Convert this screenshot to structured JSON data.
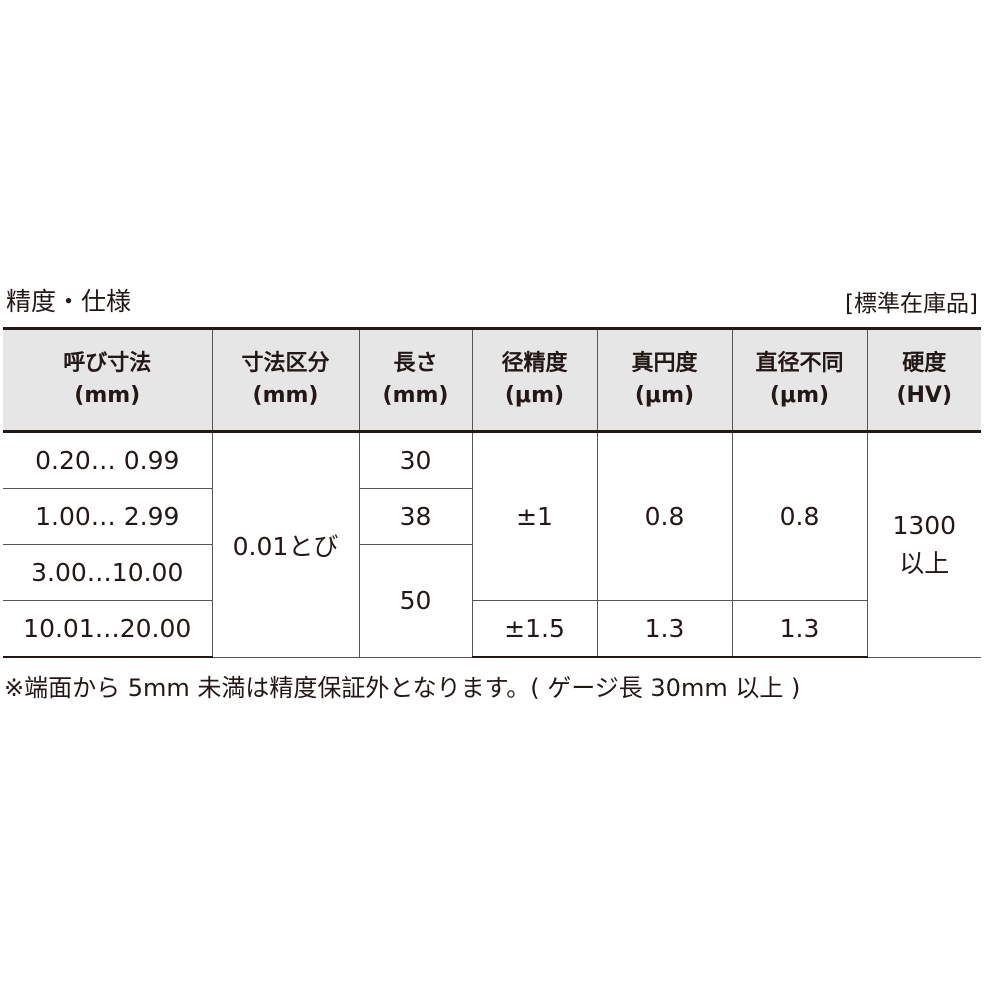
{
  "title": "精度・仕様",
  "stock_label": "[標準在庫品]",
  "headers": [
    {
      "l1": "呼び寸法",
      "l2": "(mm)"
    },
    {
      "l1": "寸法区分",
      "l2": "(mm)"
    },
    {
      "l1": "長さ",
      "l2": "(mm)"
    },
    {
      "l1": "径精度",
      "l2": "(μm)"
    },
    {
      "l1": "真円度",
      "l2": "(μm)"
    },
    {
      "l1": "直径不同",
      "l2": "(μm)"
    },
    {
      "l1": "硬度",
      "l2": "(HV)"
    }
  ],
  "rows": {
    "nominal": [
      "0.20… 0.99",
      "1.00… 2.99",
      "3.00…10.00",
      "10.01…20.00"
    ],
    "increment": "0.01とび",
    "length": [
      "30",
      "38",
      "50"
    ],
    "diameter_accuracy": [
      "±1",
      "±1.5"
    ],
    "roundness": [
      "0.8",
      "1.3"
    ],
    "diameter_variation": [
      "0.8",
      "1.3"
    ],
    "hardness_value": "1300",
    "hardness_suffix": "以上"
  },
  "footnote": "※端面から 5mm 未満は精度保証外となります。( ゲージ長 30mm 以上 )"
}
